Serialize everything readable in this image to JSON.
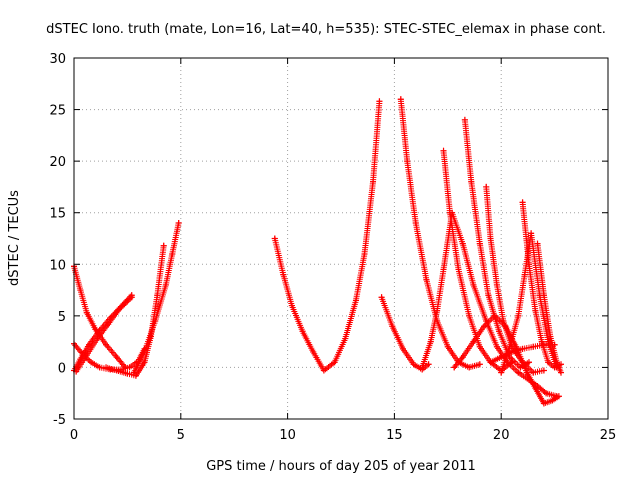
{
  "chart_data": {
    "type": "scatter",
    "title": "dSTEC Iono. truth (mate, Lon=16, Lat=40, h=535): STEC-STEC_elemax in phase cont.",
    "xlabel": "GPS time / hours of day 205 of year 2011",
    "ylabel": "dSTEC  / TECUs",
    "xlim": [
      0,
      25
    ],
    "ylim": [
      -5,
      30
    ],
    "x_ticks": [
      "0",
      "5",
      "10",
      "15",
      "20",
      "25"
    ],
    "y_ticks": [
      "-5",
      "0",
      "5",
      "10",
      "15",
      "20",
      "25",
      "30"
    ],
    "grid": true,
    "legend": "none",
    "marker": "+",
    "color": "#ff0000",
    "series": [
      {
        "x": [
          0.0,
          0.3,
          0.6,
          1.0,
          1.5,
          2.0,
          2.4
        ],
        "y": [
          9.8,
          7.5,
          5.3,
          3.7,
          2.2,
          1.0,
          0.0
        ]
      },
      {
        "x": [
          0.0,
          0.3,
          0.7,
          1.2,
          1.7,
          2.2,
          2.7
        ],
        "y": [
          -0.3,
          0.8,
          2.2,
          3.6,
          4.8,
          5.9,
          7.0
        ]
      },
      {
        "x": [
          0.0,
          0.4,
          0.8,
          1.2,
          1.7,
          2.2,
          2.6,
          3.0,
          3.3
        ],
        "y": [
          2.3,
          1.3,
          0.5,
          0.0,
          -0.2,
          -0.2,
          0.0,
          0.6,
          1.8
        ]
      },
      {
        "x": [
          0.1,
          0.6,
          1.1,
          1.6,
          2.1,
          2.7
        ],
        "y": [
          -0.4,
          1.2,
          2.8,
          4.2,
          5.6,
          6.8
        ]
      },
      {
        "x": [
          1.5,
          2.0,
          2.5,
          2.9,
          3.3,
          3.6,
          3.9,
          4.2
        ],
        "y": [
          0.0,
          -0.3,
          -0.6,
          -0.8,
          0.5,
          3.0,
          7.0,
          11.8
        ]
      },
      {
        "x": [
          2.8,
          3.3,
          3.8,
          4.3,
          4.6,
          4.9
        ],
        "y": [
          -0.5,
          1.5,
          4.5,
          8.0,
          11.0,
          14.0
        ]
      },
      {
        "x": [
          9.4,
          9.8,
          10.2,
          10.7,
          11.2,
          11.7,
          12.2,
          12.7,
          13.2,
          13.6,
          14.0,
          14.3
        ],
        "y": [
          12.5,
          9.0,
          6.0,
          3.5,
          1.5,
          -0.3,
          0.5,
          2.8,
          6.5,
          11.0,
          18.0,
          25.8
        ]
      },
      {
        "x": [
          14.4,
          14.9,
          15.4,
          15.9,
          16.3,
          16.6
        ],
        "y": [
          6.8,
          4.0,
          1.8,
          0.3,
          -0.2,
          0.3
        ]
      },
      {
        "x": [
          15.3,
          15.6,
          16.0,
          16.5,
          17.0,
          17.5,
          18.0,
          18.5,
          19.0
        ],
        "y": [
          26.0,
          20.0,
          14.0,
          8.5,
          4.5,
          2.0,
          0.5,
          0.0,
          0.3
        ]
      },
      {
        "x": [
          16.3,
          16.7,
          17.0,
          17.3,
          17.7,
          18.2,
          18.7,
          19.3,
          19.8,
          20.3,
          20.8,
          21.3,
          21.7,
          22.1,
          22.6
        ],
        "y": [
          0.0,
          2.5,
          5.5,
          9.5,
          15.0,
          12.0,
          8.0,
          4.5,
          2.0,
          0.5,
          -0.5,
          -1.2,
          -1.8,
          -2.5,
          -2.8
        ]
      },
      {
        "x": [
          17.3,
          17.6,
          18.0,
          18.5,
          19.0,
          19.5,
          20.0,
          20.5
        ],
        "y": [
          21.0,
          15.0,
          9.5,
          5.0,
          2.0,
          0.5,
          -0.3,
          0.5
        ]
      },
      {
        "x": [
          17.8,
          18.2,
          18.7,
          19.2,
          19.7,
          20.2,
          20.7,
          21.2,
          21.6,
          22.0,
          22.4,
          22.7
        ],
        "y": [
          0.0,
          1.0,
          2.5,
          4.0,
          5.0,
          4.0,
          2.0,
          -0.5,
          -2.0,
          -3.5,
          -3.2,
          -2.8
        ]
      },
      {
        "x": [
          18.3,
          18.6,
          19.0,
          19.4,
          19.9,
          20.4,
          20.9,
          21.3
        ],
        "y": [
          24.0,
          18.0,
          12.0,
          7.0,
          3.5,
          1.0,
          0.0,
          0.5
        ]
      },
      {
        "x": [
          19.3,
          19.5,
          19.8,
          20.1,
          20.5,
          21.0,
          21.5,
          22.0
        ],
        "y": [
          17.5,
          12.5,
          8.0,
          4.5,
          2.0,
          0.5,
          -0.5,
          -0.3
        ]
      },
      {
        "x": [
          20.0,
          20.4,
          20.8,
          21.1,
          21.4,
          21.8,
          22.2,
          22.6
        ],
        "y": [
          -0.5,
          2.0,
          5.0,
          9.0,
          13.0,
          7.0,
          2.5,
          0.0
        ]
      },
      {
        "x": [
          21.0,
          21.3,
          21.6,
          21.9,
          22.2,
          22.5,
          22.8
        ],
        "y": [
          16.0,
          10.0,
          5.5,
          2.5,
          0.5,
          0.0,
          0.3
        ]
      },
      {
        "x": [
          19.5,
          20.0,
          20.5,
          21.0,
          21.5,
          22.0,
          22.5
        ],
        "y": [
          0.5,
          1.0,
          1.5,
          1.8,
          2.0,
          2.2,
          2.2
        ]
      },
      {
        "x": [
          21.7,
          22.0,
          22.3,
          22.6,
          22.8
        ],
        "y": [
          12.0,
          7.0,
          3.0,
          0.5,
          -0.5
        ]
      }
    ]
  }
}
